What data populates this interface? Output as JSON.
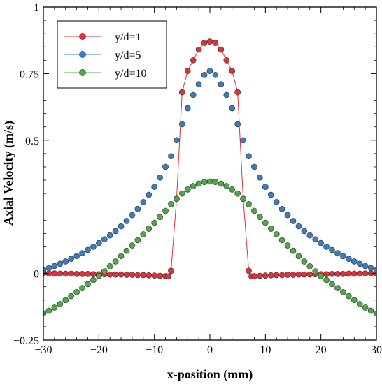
{
  "chart_data": {
    "type": "scatter",
    "title": "",
    "xlabel": "x-position (mm)",
    "ylabel": "Axial Velocity (m/s)",
    "xlim": [
      -30,
      30
    ],
    "ylim": [
      -0.25,
      1
    ],
    "x_ticks": [
      -30,
      -20,
      -10,
      0,
      10,
      20,
      30
    ],
    "x_tick_labels": [
      "−30",
      "−20",
      "−10",
      "0",
      "10",
      "20",
      "30"
    ],
    "y_ticks": [
      -0.25,
      0,
      0.5,
      0.75,
      1
    ],
    "y_tick_labels": [
      "−0.25",
      "0",
      "0.5",
      "0.75",
      "1"
    ],
    "grid": false,
    "legend_position": "top-left",
    "series": [
      {
        "name": "y/d=1",
        "color": "#e2303a",
        "line": true,
        "x": [
          -30,
          -29,
          -28,
          -27,
          -26,
          -25,
          -24,
          -23,
          -22,
          -21,
          -20,
          -19,
          -18,
          -17,
          -16,
          -15,
          -14,
          -13,
          -12,
          -11,
          -10,
          -9,
          -8,
          -7.5,
          -7,
          -6,
          -5,
          -4,
          -3,
          -2,
          -1,
          0,
          1,
          2,
          3,
          4,
          5,
          6,
          7,
          7.5,
          8,
          9,
          10,
          11,
          12,
          13,
          14,
          15,
          16,
          17,
          18,
          19,
          20,
          21,
          22,
          23,
          24,
          25,
          26,
          27,
          28,
          29,
          30
        ],
        "y": [
          0.0,
          0.0,
          0.0,
          -0.001,
          -0.001,
          -0.001,
          -0.002,
          -0.002,
          -0.002,
          -0.003,
          -0.003,
          -0.003,
          -0.004,
          -0.004,
          -0.004,
          -0.005,
          -0.005,
          -0.006,
          -0.006,
          -0.007,
          -0.008,
          -0.009,
          -0.01,
          -0.011,
          0.01,
          0.28,
          0.68,
          0.76,
          0.8,
          0.84,
          0.865,
          0.87,
          0.865,
          0.84,
          0.8,
          0.76,
          0.68,
          0.28,
          0.01,
          -0.011,
          -0.01,
          -0.009,
          -0.008,
          -0.007,
          -0.006,
          -0.006,
          -0.005,
          -0.005,
          -0.004,
          -0.004,
          -0.004,
          -0.003,
          -0.003,
          -0.003,
          -0.002,
          -0.002,
          -0.002,
          -0.001,
          -0.001,
          -0.001,
          0.0,
          0.0,
          0.0
        ]
      },
      {
        "name": "y/d=5",
        "color": "#3a7dc0",
        "line": false,
        "x": [
          -30,
          -29,
          -28,
          -27,
          -26,
          -25,
          -24,
          -23,
          -22,
          -21,
          -20,
          -19,
          -18,
          -17,
          -16,
          -15,
          -14,
          -13,
          -12,
          -11,
          -10,
          -9,
          -8,
          -7,
          -6,
          -5,
          -4,
          -3,
          -2,
          -1,
          0,
          1,
          2,
          3,
          4,
          5,
          6,
          7,
          8,
          9,
          10,
          11,
          12,
          13,
          14,
          15,
          16,
          17,
          18,
          19,
          20,
          21,
          22,
          23,
          24,
          25,
          26,
          27,
          28,
          29,
          30
        ],
        "y": [
          0.012,
          0.02,
          0.028,
          0.036,
          0.045,
          0.055,
          0.065,
          0.076,
          0.088,
          0.1,
          0.114,
          0.128,
          0.143,
          0.159,
          0.177,
          0.197,
          0.219,
          0.242,
          0.268,
          0.295,
          0.325,
          0.36,
          0.4,
          0.44,
          0.5,
          0.56,
          0.62,
          0.67,
          0.71,
          0.745,
          0.76,
          0.745,
          0.71,
          0.67,
          0.62,
          0.56,
          0.5,
          0.44,
          0.4,
          0.36,
          0.325,
          0.295,
          0.268,
          0.242,
          0.219,
          0.197,
          0.177,
          0.159,
          0.143,
          0.128,
          0.114,
          0.1,
          0.088,
          0.076,
          0.065,
          0.055,
          0.045,
          0.036,
          0.028,
          0.02,
          0.012
        ]
      },
      {
        "name": "y/d=10",
        "color": "#4caa48",
        "line": false,
        "x": [
          -30,
          -29,
          -28,
          -27,
          -26,
          -25,
          -24,
          -23,
          -22,
          -21,
          -20,
          -19,
          -18,
          -17,
          -16,
          -15,
          -14,
          -13,
          -12,
          -11,
          -10,
          -9,
          -8,
          -7,
          -6,
          -5,
          -4,
          -3,
          -2,
          -1,
          0,
          1,
          2,
          3,
          4,
          5,
          6,
          7,
          8,
          9,
          10,
          11,
          12,
          13,
          14,
          15,
          16,
          17,
          18,
          19,
          20,
          21,
          22,
          23,
          24,
          25,
          26,
          27,
          28,
          29,
          30
        ],
        "y": [
          -0.15,
          -0.14,
          -0.128,
          -0.115,
          -0.1,
          -0.085,
          -0.07,
          -0.055,
          -0.04,
          -0.025,
          -0.01,
          0.008,
          0.027,
          0.045,
          0.065,
          0.085,
          0.105,
          0.125,
          0.147,
          0.168,
          0.19,
          0.212,
          0.235,
          0.26,
          0.28,
          0.3,
          0.315,
          0.328,
          0.337,
          0.343,
          0.345,
          0.343,
          0.337,
          0.328,
          0.315,
          0.3,
          0.28,
          0.26,
          0.235,
          0.212,
          0.19,
          0.168,
          0.147,
          0.125,
          0.105,
          0.085,
          0.065,
          0.045,
          0.027,
          0.008,
          -0.01,
          -0.025,
          -0.04,
          -0.055,
          -0.07,
          -0.085,
          -0.1,
          -0.115,
          -0.128,
          -0.14,
          -0.15
        ]
      }
    ]
  }
}
